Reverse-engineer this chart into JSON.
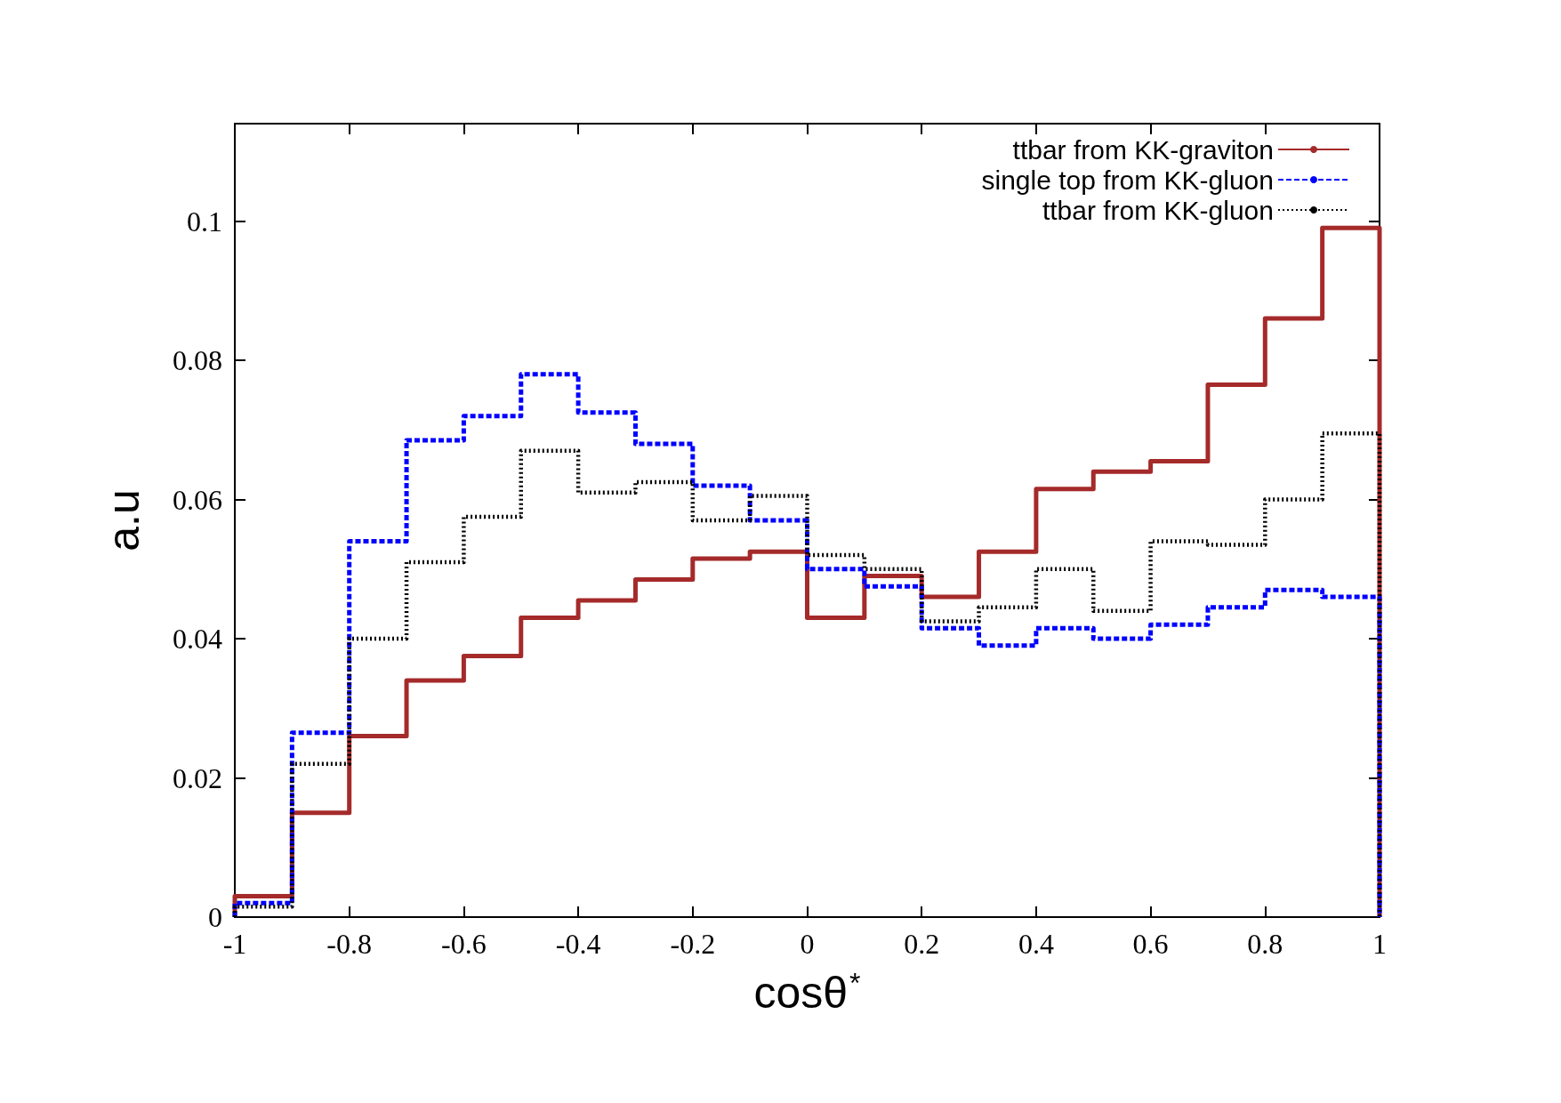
{
  "chart_data": {
    "type": "histogram",
    "xlabel": "cosθ$^{*}$",
    "ylabel": "a.u",
    "bins": [
      -1,
      -0.9,
      -0.8,
      -0.7,
      -0.6,
      -0.5,
      -0.4,
      -0.3,
      -0.2,
      -0.1,
      0,
      0.1,
      0.2,
      0.3,
      0.4,
      0.5,
      0.6,
      0.7,
      0.8,
      0.9,
      1
    ],
    "series": [
      {
        "name": "ttbar from KK-graviton",
        "color": "#a52a2a",
        "line_style": "solid",
        "values": [
          0.003,
          0.015,
          0.026,
          0.034,
          0.0375,
          0.043,
          0.0455,
          0.0485,
          0.0515,
          0.0525,
          0.043,
          0.049,
          0.046,
          0.0525,
          0.0615,
          0.064,
          0.0655,
          0.0765,
          0.086,
          0.099
        ]
      },
      {
        "name": "single top from KK-gluon",
        "color": "#0000ff",
        "line_style": "dashed",
        "values": [
          0.002,
          0.0265,
          0.054,
          0.0685,
          0.072,
          0.078,
          0.0725,
          0.068,
          0.062,
          0.057,
          0.05,
          0.0475,
          0.0415,
          0.039,
          0.0415,
          0.04,
          0.042,
          0.0445,
          0.047,
          0.046
        ]
      },
      {
        "name": "ttbar from KK-gluon",
        "color": "#000000",
        "line_style": "dotted",
        "values": [
          0.0015,
          0.022,
          0.04,
          0.051,
          0.0575,
          0.067,
          0.061,
          0.0625,
          0.057,
          0.0605,
          0.052,
          0.05,
          0.0425,
          0.0445,
          0.05,
          0.044,
          0.054,
          0.0535,
          0.06,
          0.0695
        ]
      }
    ],
    "xlim": [
      -1,
      1
    ],
    "xticks": [
      -1,
      -0.8,
      -0.6,
      -0.4,
      -0.2,
      0,
      0.2,
      0.4,
      0.6,
      0.8,
      1
    ],
    "ylim": [
      0,
      0.114
    ],
    "yticks": [
      0,
      0.02,
      0.04,
      0.06,
      0.08,
      0.1
    ],
    "grid": false,
    "legend": "top right"
  }
}
